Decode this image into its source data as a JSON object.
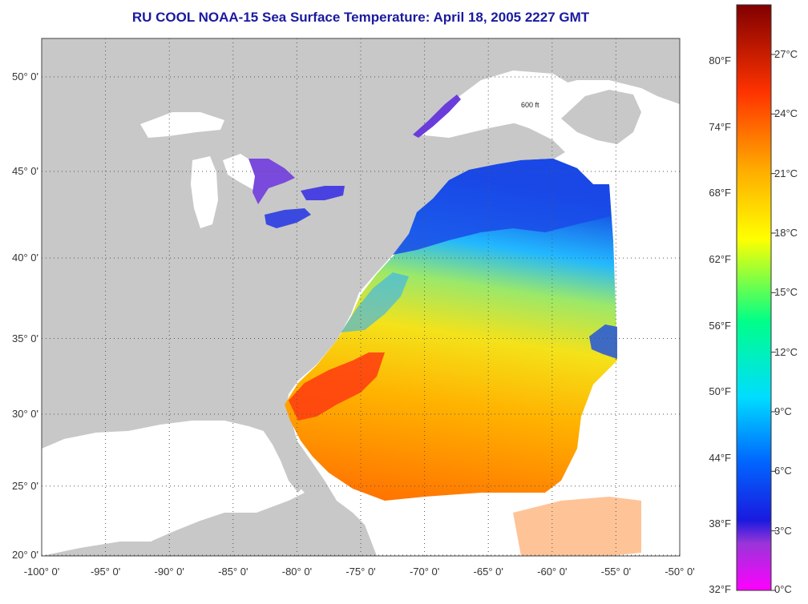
{
  "title": "RU COOL  NOAA-15  Sea Surface Temperature:  April 18, 2005 2227 GMT",
  "map": {
    "lat_labels": [
      {
        "text": "50° 0'",
        "lat": 50
      },
      {
        "text": "45° 0'",
        "lat": 45
      },
      {
        "text": "40° 0'",
        "lat": 40
      },
      {
        "text": "35° 0'",
        "lat": 35
      },
      {
        "text": "30° 0'",
        "lat": 30
      },
      {
        "text": "25° 0'",
        "lat": 25
      },
      {
        "text": "20° 0'",
        "lat": 20
      }
    ],
    "lon_labels": [
      {
        "text": "-100° 0'",
        "lon": -100
      },
      {
        "text": "-95° 0'",
        "lon": -95
      },
      {
        "text": "-90° 0'",
        "lon": -90
      },
      {
        "text": "-85° 0'",
        "lon": -85
      },
      {
        "text": "-80° 0'",
        "lon": -80
      },
      {
        "text": "-75° 0'",
        "lon": -75
      },
      {
        "text": "-70° 0'",
        "lon": -70
      },
      {
        "text": "-65° 0'",
        "lon": -65
      },
      {
        "text": "-60° 0'",
        "lon": -60
      },
      {
        "text": "-55° 0'",
        "lon": -55
      },
      {
        "text": "-50° 0'",
        "lon": -50
      }
    ],
    "isobath_label": "600 ft",
    "colors": {
      "land": "#c8c8c8",
      "water": "#ffffff",
      "grid": "#555555",
      "title": "#1a1aa0"
    }
  },
  "colorbar": {
    "fahrenheit_labels": [
      "80°F",
      "74°F",
      "68°F",
      "62°F",
      "56°F",
      "50°F",
      "44°F",
      "38°F",
      "32°F"
    ],
    "celsius_labels": [
      "27°C",
      "24°C",
      "21°C",
      "18°C",
      "15°C",
      "12°C",
      "9°C",
      "6°C",
      "3°C",
      "0°C"
    ],
    "gradient_colors": [
      "#ff00ff",
      "#9a35d8",
      "#1a1adf",
      "#0066ff",
      "#00ddff",
      "#00ff88",
      "#ffff00",
      "#ffaa00",
      "#ff3300",
      "#800000"
    ]
  }
}
